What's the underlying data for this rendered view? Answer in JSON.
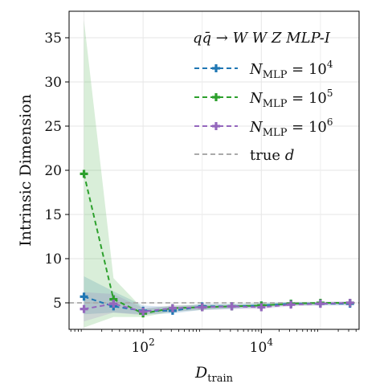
{
  "chart_data": {
    "type": "line",
    "title": "",
    "xlabel": "D",
    "xlabel_sub": "train",
    "ylabel": "Intrinsic Dimension",
    "xscale": "log",
    "xlim": [
      5.6,
      450000
    ],
    "ylim": [
      2.0,
      38.0
    ],
    "grid": true,
    "legend_position": "top-right",
    "legend_title": "qq̄ → W W Z  MLP-I",
    "yticks": [
      5,
      10,
      15,
      20,
      25,
      30,
      35
    ],
    "xticks": [
      {
        "value": 100,
        "base": "10",
        "exp": "2"
      },
      {
        "value": 10000,
        "base": "10",
        "exp": "4"
      }
    ],
    "x": [
      10,
      31.6,
      100,
      316,
      1000,
      3162,
      10000,
      31623,
      100000,
      316228
    ],
    "series": [
      {
        "name_main": "N",
        "name_sub": "MLP",
        "name_eq": " = 10",
        "name_exp": "4",
        "color": "#1f77b4",
        "y": [
          5.7,
          4.6,
          4.1,
          4.1,
          4.6,
          4.6,
          4.7,
          4.9,
          4.9,
          4.9
        ],
        "low": [
          3.7,
          3.9,
          3.7,
          3.8,
          4.2,
          4.3,
          4.5,
          4.7,
          4.7,
          4.7
        ],
        "high": [
          8.0,
          6.3,
          4.7,
          4.5,
          4.9,
          4.9,
          5.0,
          5.1,
          5.1,
          5.1
        ]
      },
      {
        "name_main": "N",
        "name_sub": "MLP",
        "name_eq": " = 10",
        "name_exp": "5",
        "color": "#2ca02c",
        "y": [
          19.6,
          5.4,
          3.8,
          4.4,
          4.5,
          4.6,
          4.7,
          4.9,
          5.0,
          5.0
        ],
        "low": [
          2.2,
          3.4,
          3.4,
          4.0,
          4.2,
          4.4,
          4.5,
          4.7,
          4.8,
          4.8
        ],
        "high": [
          37.0,
          7.8,
          4.3,
          4.7,
          4.8,
          4.8,
          4.9,
          5.1,
          5.1,
          5.1
        ]
      },
      {
        "name_main": "N",
        "name_sub": "MLP",
        "name_eq": " = 10",
        "name_exp": "6",
        "color": "#9467bd",
        "y": [
          4.3,
          4.9,
          4.0,
          4.4,
          4.5,
          4.6,
          4.5,
          4.8,
          4.9,
          5.0
        ],
        "low": [
          2.9,
          3.9,
          3.6,
          4.0,
          4.2,
          4.3,
          4.3,
          4.6,
          4.7,
          4.8
        ],
        "high": [
          6.2,
          6.0,
          4.4,
          4.7,
          4.8,
          4.8,
          4.8,
          5.0,
          5.1,
          5.2
        ]
      }
    ],
    "reference": {
      "label_main": "true ",
      "label_var": "d",
      "value": 5,
      "color": "#aaaaaa"
    }
  }
}
